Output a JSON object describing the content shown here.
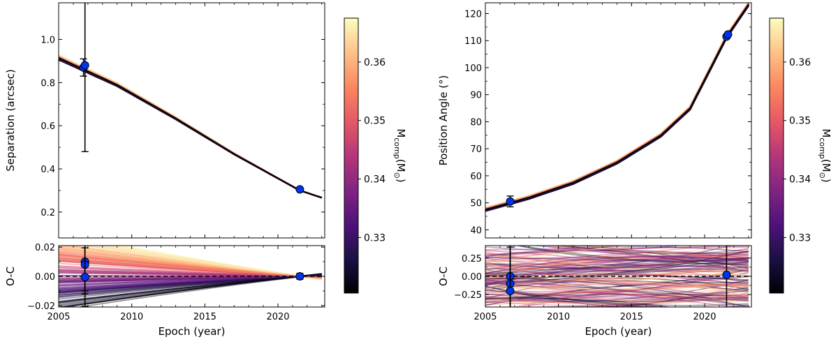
{
  "figure": {
    "x_tick_labels": [
      "2005",
      "2010",
      "2015",
      "2020"
    ]
  },
  "colorbar": {
    "label_main": "M",
    "label_sub": "comp",
    "label_unit": "(M",
    "label_sun": "⊙",
    "label_close": ")",
    "range": [
      0.3205,
      0.3675
    ],
    "ticks": [
      0.33,
      0.34,
      0.35,
      0.36
    ],
    "tick_labels": [
      "0.33",
      "0.34",
      "0.35",
      "0.36"
    ],
    "colors": [
      "#000004",
      "#1c1044",
      "#4f127b",
      "#812581",
      "#b5367a",
      "#e55964",
      "#fb8761",
      "#fec287",
      "#fcfdbf"
    ]
  },
  "chart_data": [
    {
      "type": "line",
      "id": "separation-main",
      "title": "",
      "xlabel": "",
      "ylabel": "Separation (arcsec)",
      "xlim": [
        2005,
        2023.2
      ],
      "ylim": [
        0.08,
        1.17
      ],
      "yticks": [
        0.2,
        0.4,
        0.6,
        0.8,
        1.0
      ],
      "ytick_labels": [
        "0.2",
        "0.4",
        "0.6",
        "0.8",
        "1.0"
      ],
      "best_fit": {
        "x": [
          2005,
          2009,
          2013,
          2017,
          2021.5,
          2023.2
        ],
        "y": [
          0.915,
          0.79,
          0.635,
          0.47,
          0.3,
          0.262
        ]
      },
      "observations": [
        {
          "x": 2006.7,
          "y": 0.87,
          "yerr": 0.04
        },
        {
          "x": 2006.8,
          "y": 0.88,
          "yerr": 0.4
        },
        {
          "x": 2021.5,
          "y": 0.305,
          "yerr": 0.005
        }
      ]
    },
    {
      "type": "line",
      "id": "separation-residual",
      "xlabel": "Epoch (year)",
      "ylabel": "O-C",
      "xlim": [
        2005,
        2023.2
      ],
      "ylim": [
        -0.021,
        0.021
      ],
      "yticks": [
        -0.02,
        0.0,
        0.02
      ],
      "ytick_labels": [
        "−0.02",
        "0.00",
        "0.02"
      ],
      "observations": [
        {
          "x": 2006.8,
          "y": 0.01,
          "yerr": 0.02
        },
        {
          "x": 2006.8,
          "y": 0.008,
          "yerr": 0.02
        },
        {
          "x": 2006.8,
          "y": -0.0005,
          "yerr": 0.02
        },
        {
          "x": 2021.5,
          "y": 0.0,
          "yerr": 0.002
        }
      ]
    },
    {
      "type": "line",
      "id": "position-angle-main",
      "xlabel": "",
      "ylabel": "Position Angle (°)",
      "xlim": [
        2005,
        2023.2
      ],
      "ylim": [
        37,
        124
      ],
      "yticks": [
        40,
        50,
        60,
        70,
        80,
        90,
        100,
        110,
        120
      ],
      "ytick_labels": [
        "40",
        "50",
        "60",
        "70",
        "80",
        "90",
        "100",
        "110",
        "120"
      ],
      "best_fit": {
        "x": [
          2005,
          2008,
          2011,
          2014,
          2017,
          2019,
          2021.5,
          2023.2
        ],
        "y": [
          47.5,
          52,
          57.5,
          65,
          75,
          85,
          111.5,
          125
        ]
      },
      "observations": [
        {
          "x": 2006.7,
          "y": 50.5,
          "yerr": 2.0
        },
        {
          "x": 2021.5,
          "y": 111.5,
          "yerr": 0.7
        },
        {
          "x": 2021.6,
          "y": 112.3,
          "yerr": 0.7
        }
      ]
    },
    {
      "type": "line",
      "id": "position-angle-residual",
      "xlabel": "Epoch (year)",
      "ylabel": "O-C",
      "xlim": [
        2005,
        2023.2
      ],
      "ylim": [
        -0.42,
        0.42
      ],
      "yticks": [
        -0.25,
        0.0,
        0.25
      ],
      "ytick_labels": [
        "−0.25",
        "0.00",
        "0.25"
      ],
      "observations": [
        {
          "x": 2006.7,
          "y": 0.0,
          "yerr": 0.6
        },
        {
          "x": 2006.7,
          "y": -0.1,
          "yerr": 0.6
        },
        {
          "x": 2006.7,
          "y": -0.2,
          "yerr": 0.6
        },
        {
          "x": 2021.5,
          "y": 0.02,
          "yerr": 0.6
        }
      ]
    }
  ]
}
